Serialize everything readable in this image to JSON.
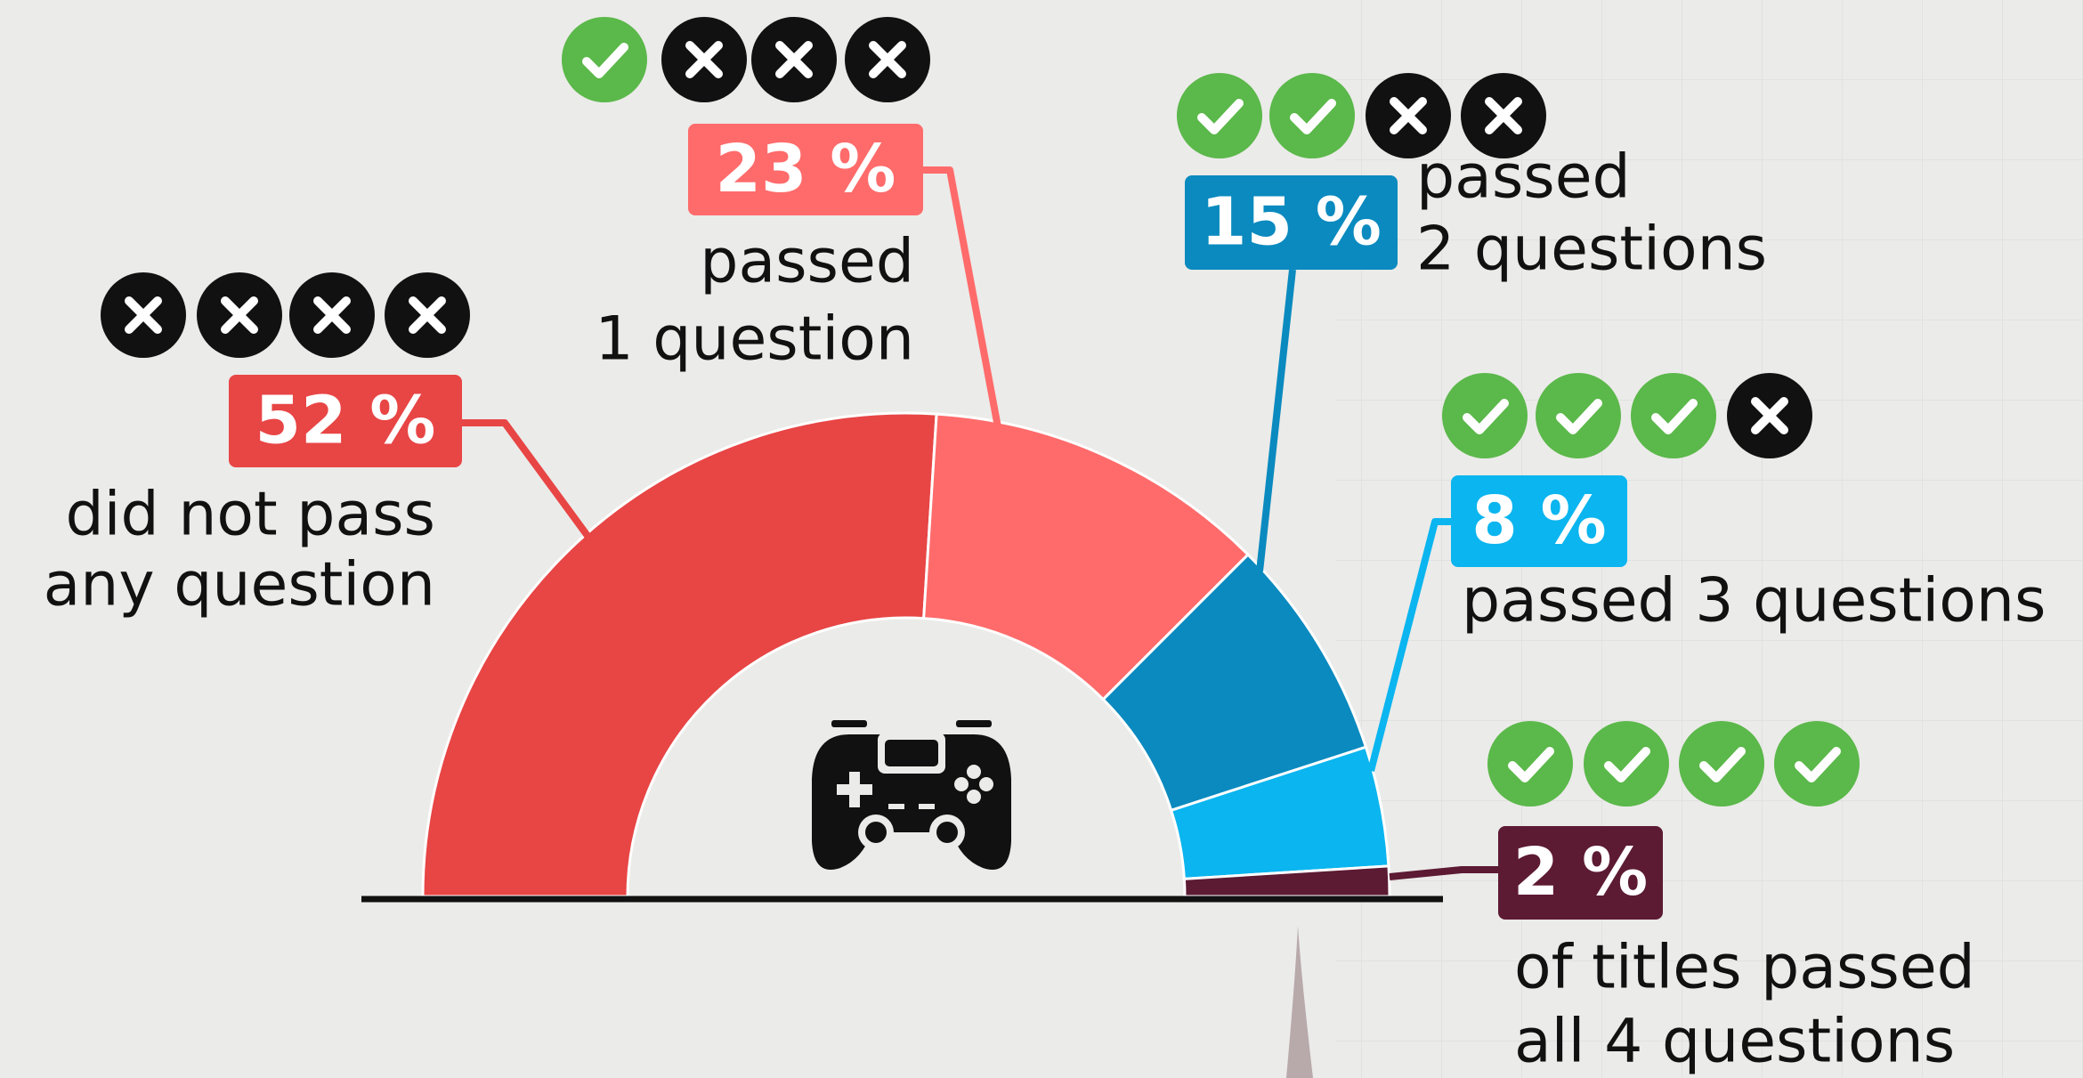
{
  "chart_data": {
    "type": "pie",
    "subtype": "half-donut",
    "values": [
      52,
      23,
      15,
      8,
      2
    ],
    "value_labels": [
      "52 %",
      "23 %",
      "15 %",
      "8 %",
      "2 %"
    ],
    "categories": [
      [
        "did not pass",
        "any question"
      ],
      [
        "passed",
        "1 question"
      ],
      [
        "passed",
        "2 questions"
      ],
      [
        "passed 3 questions"
      ],
      [
        "of titles passed",
        "all 4 questions"
      ]
    ],
    "colors": [
      "#e84545",
      "#ff6b6b",
      "#0a8abf",
      "#0bb5ef",
      "#5c1a33"
    ]
  }
}
